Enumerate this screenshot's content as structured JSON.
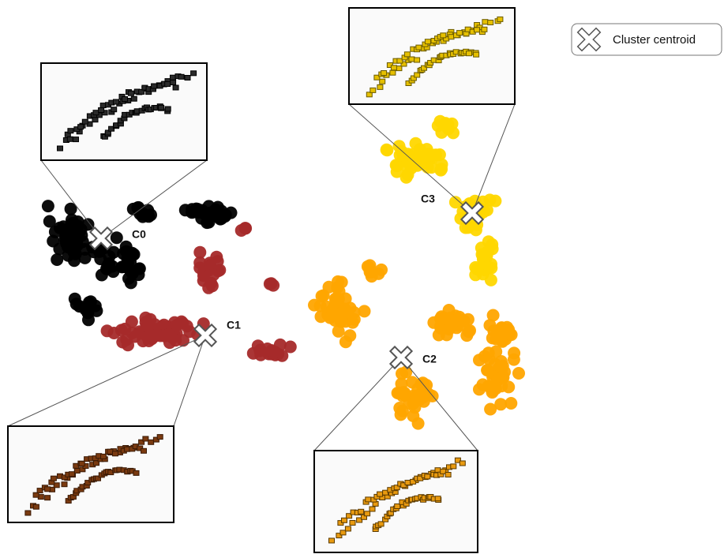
{
  "legend": {
    "label": "Cluster centroid"
  },
  "clusters": [
    {
      "label": "C0"
    },
    {
      "label": "C1"
    },
    {
      "label": "C2"
    },
    {
      "label": "C3"
    }
  ]
}
